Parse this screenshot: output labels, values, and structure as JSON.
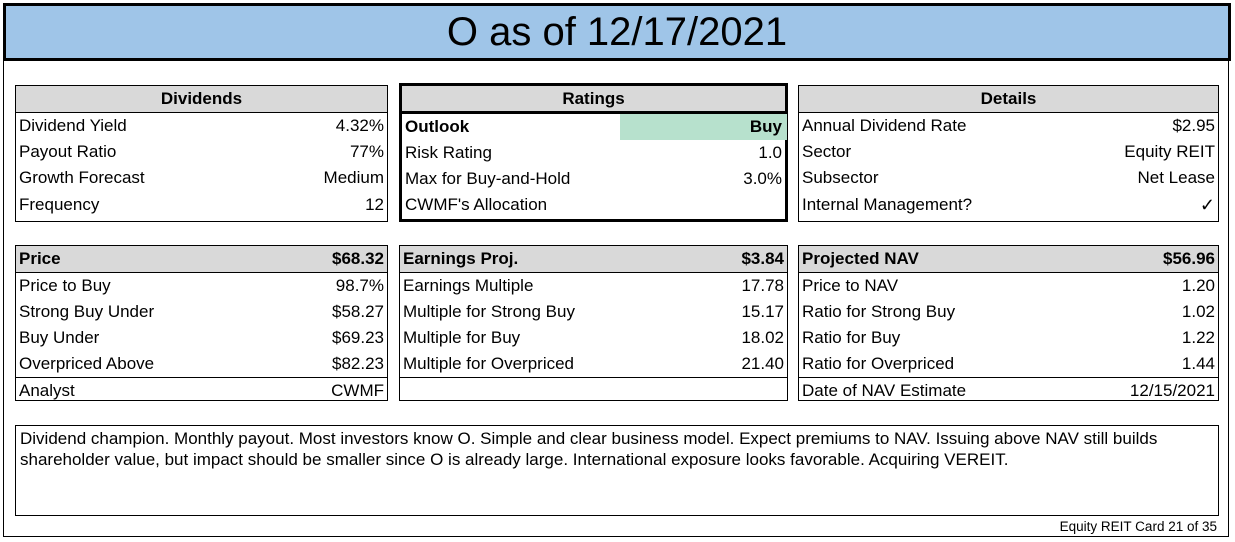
{
  "title": "O as of 12/17/2021",
  "dividends": {
    "header": "Dividends",
    "rows": [
      {
        "label": "Dividend Yield",
        "value": "4.32%"
      },
      {
        "label": "Payout Ratio",
        "value": "77%"
      },
      {
        "label": "Growth Forecast",
        "value": "Medium"
      },
      {
        "label": "Frequency",
        "value": "12"
      }
    ]
  },
  "ratings": {
    "header": "Ratings",
    "rows": [
      {
        "label": "Outlook",
        "value": "Buy"
      },
      {
        "label": "Risk Rating",
        "value": "1.0"
      },
      {
        "label": "Max for Buy-and-Hold",
        "value": "3.0%"
      },
      {
        "label": "CWMF's Allocation",
        "value": ""
      }
    ],
    "highlight_color": "#b7e1cd"
  },
  "details": {
    "header": "Details",
    "rows": [
      {
        "label": "Annual Dividend Rate",
        "value": "$2.95"
      },
      {
        "label": "Sector",
        "value": "Equity REIT"
      },
      {
        "label": "Subsector",
        "value": "Net Lease"
      },
      {
        "label": "Internal Management?",
        "value": "✓"
      }
    ]
  },
  "price": {
    "header_label": "Price",
    "header_value": "$68.32",
    "rows": [
      {
        "label": "Price to Buy",
        "value": "98.7%"
      },
      {
        "label": "Strong Buy Under",
        "value": "$58.27"
      },
      {
        "label": "Buy Under",
        "value": "$69.23"
      },
      {
        "label": "Overpriced Above",
        "value": "$82.23"
      }
    ],
    "footer": {
      "label": "Analyst",
      "value": "CWMF"
    }
  },
  "earnings": {
    "header_label": "Earnings Proj.",
    "header_value": "$3.84",
    "rows": [
      {
        "label": "Earnings Multiple",
        "value": "17.78"
      },
      {
        "label": "Multiple for Strong Buy",
        "value": "15.17"
      },
      {
        "label": "Multiple for Buy",
        "value": "18.02"
      },
      {
        "label": "Multiple for Overpriced",
        "value": "21.40"
      }
    ],
    "footer": {
      "label": "",
      "value": ""
    }
  },
  "nav": {
    "header_label": "Projected NAV",
    "header_value": "$56.96",
    "rows": [
      {
        "label": "Price to NAV",
        "value": "1.20"
      },
      {
        "label": "Ratio for Strong Buy",
        "value": "1.02"
      },
      {
        "label": "Ratio for Buy",
        "value": "1.22"
      },
      {
        "label": "Ratio for Overpriced",
        "value": "1.44"
      }
    ],
    "footer": {
      "label": "Date of NAV Estimate",
      "value": "12/15/2021"
    }
  },
  "notes": "Dividend champion. Monthly payout. Most investors know O. Simple and clear business model. Expect premiums to NAV. Issuing above NAV still builds shareholder value, but impact should be smaller since O is already large. International exposure looks favorable. Acquiring VEREIT.",
  "footer": "Equity REIT Card 21 of 35",
  "colors": {
    "title_bg": "#9fc5e8",
    "header_bg": "#d9d9d9",
    "outlook_highlight": "#b7e1cd"
  }
}
